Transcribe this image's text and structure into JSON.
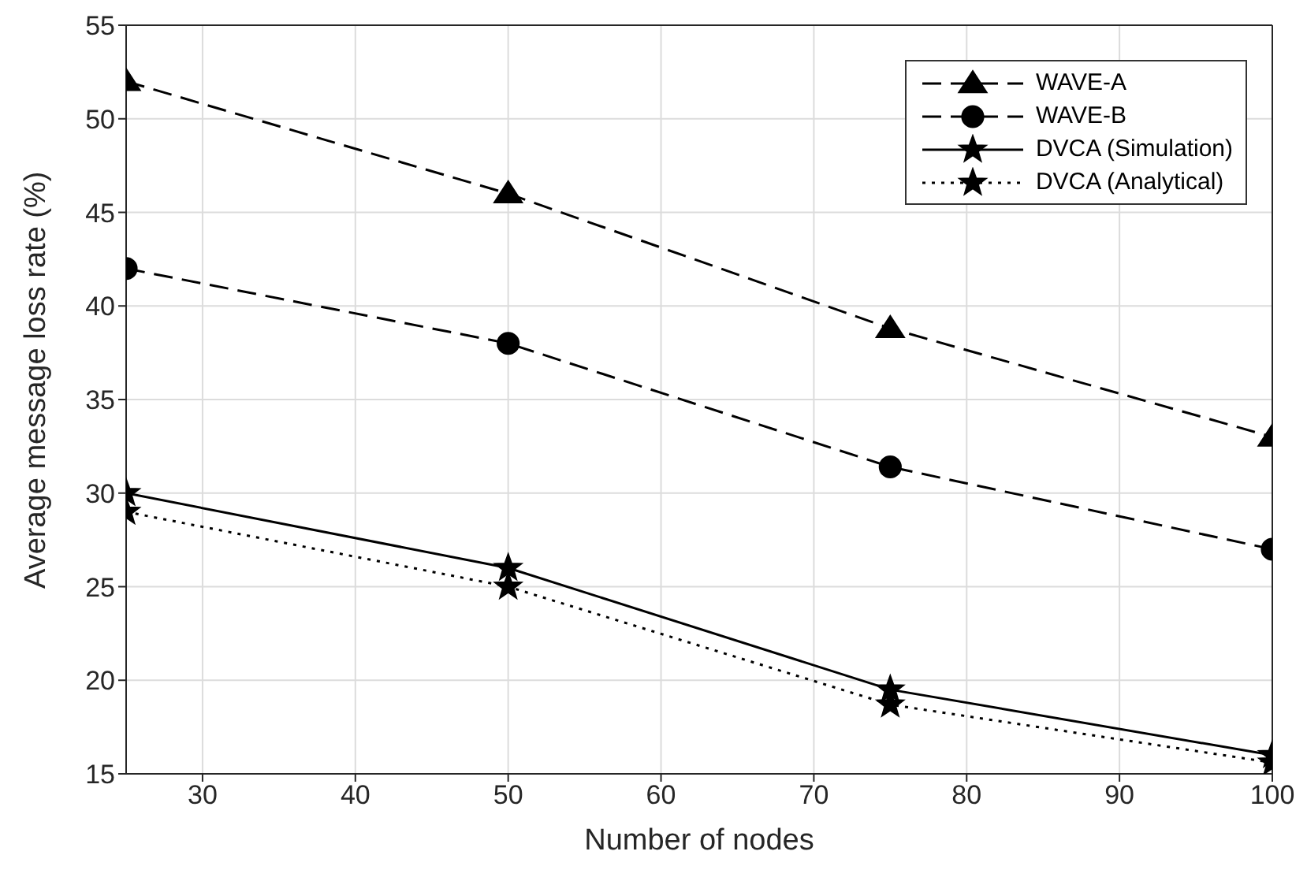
{
  "chart_data": {
    "type": "line",
    "xlabel": "Number of nodes",
    "ylabel": "Average message loss rate (%)",
    "x": [
      25,
      50,
      75,
      100
    ],
    "series": [
      {
        "name": "WAVE-A",
        "color": "#000000",
        "values": [
          52,
          46,
          38.8,
          33
        ],
        "marker": "triangle",
        "line_style": "dashed"
      },
      {
        "name": "WAVE-B",
        "color": "#000000",
        "values": [
          42,
          38,
          31.4,
          27
        ],
        "marker": "circle",
        "line_style": "dashed"
      },
      {
        "name": "DVCA (Simulation)",
        "color": "#000000",
        "values": [
          30,
          26,
          19.5,
          16
        ],
        "marker": "star",
        "line_style": "solid"
      },
      {
        "name": "DVCA (Analytical)",
        "color": "#000000",
        "values": [
          29,
          25,
          18.7,
          15.6
        ],
        "marker": "star",
        "line_style": "dotted"
      }
    ],
    "xlim": [
      25,
      100
    ],
    "xticks": [
      30,
      40,
      50,
      60,
      70,
      80,
      90,
      100
    ],
    "ylim": [
      15,
      55
    ],
    "yticks": [
      15,
      20,
      25,
      30,
      35,
      40,
      45,
      50,
      55
    ],
    "grid": true,
    "legend": "top right"
  }
}
